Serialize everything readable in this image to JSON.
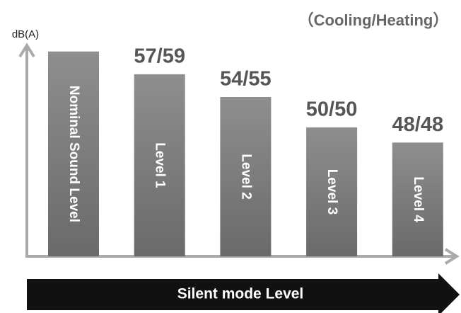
{
  "chart_data": {
    "type": "bar",
    "title": "（Cooling/Heating）",
    "y_label": "dB(A)",
    "x_label": "Silent mode Level",
    "categories": [
      "Nominal Sound Level",
      "Level 1",
      "Level 2",
      "Level 3",
      "Level 4"
    ],
    "values": [
      60,
      57,
      54,
      50,
      48
    ],
    "value_labels": [
      null,
      "57/59",
      "54/55",
      "50/50",
      "48/48"
    ],
    "color": "#7a7a7a",
    "ylim": [
      33,
      61
    ]
  }
}
